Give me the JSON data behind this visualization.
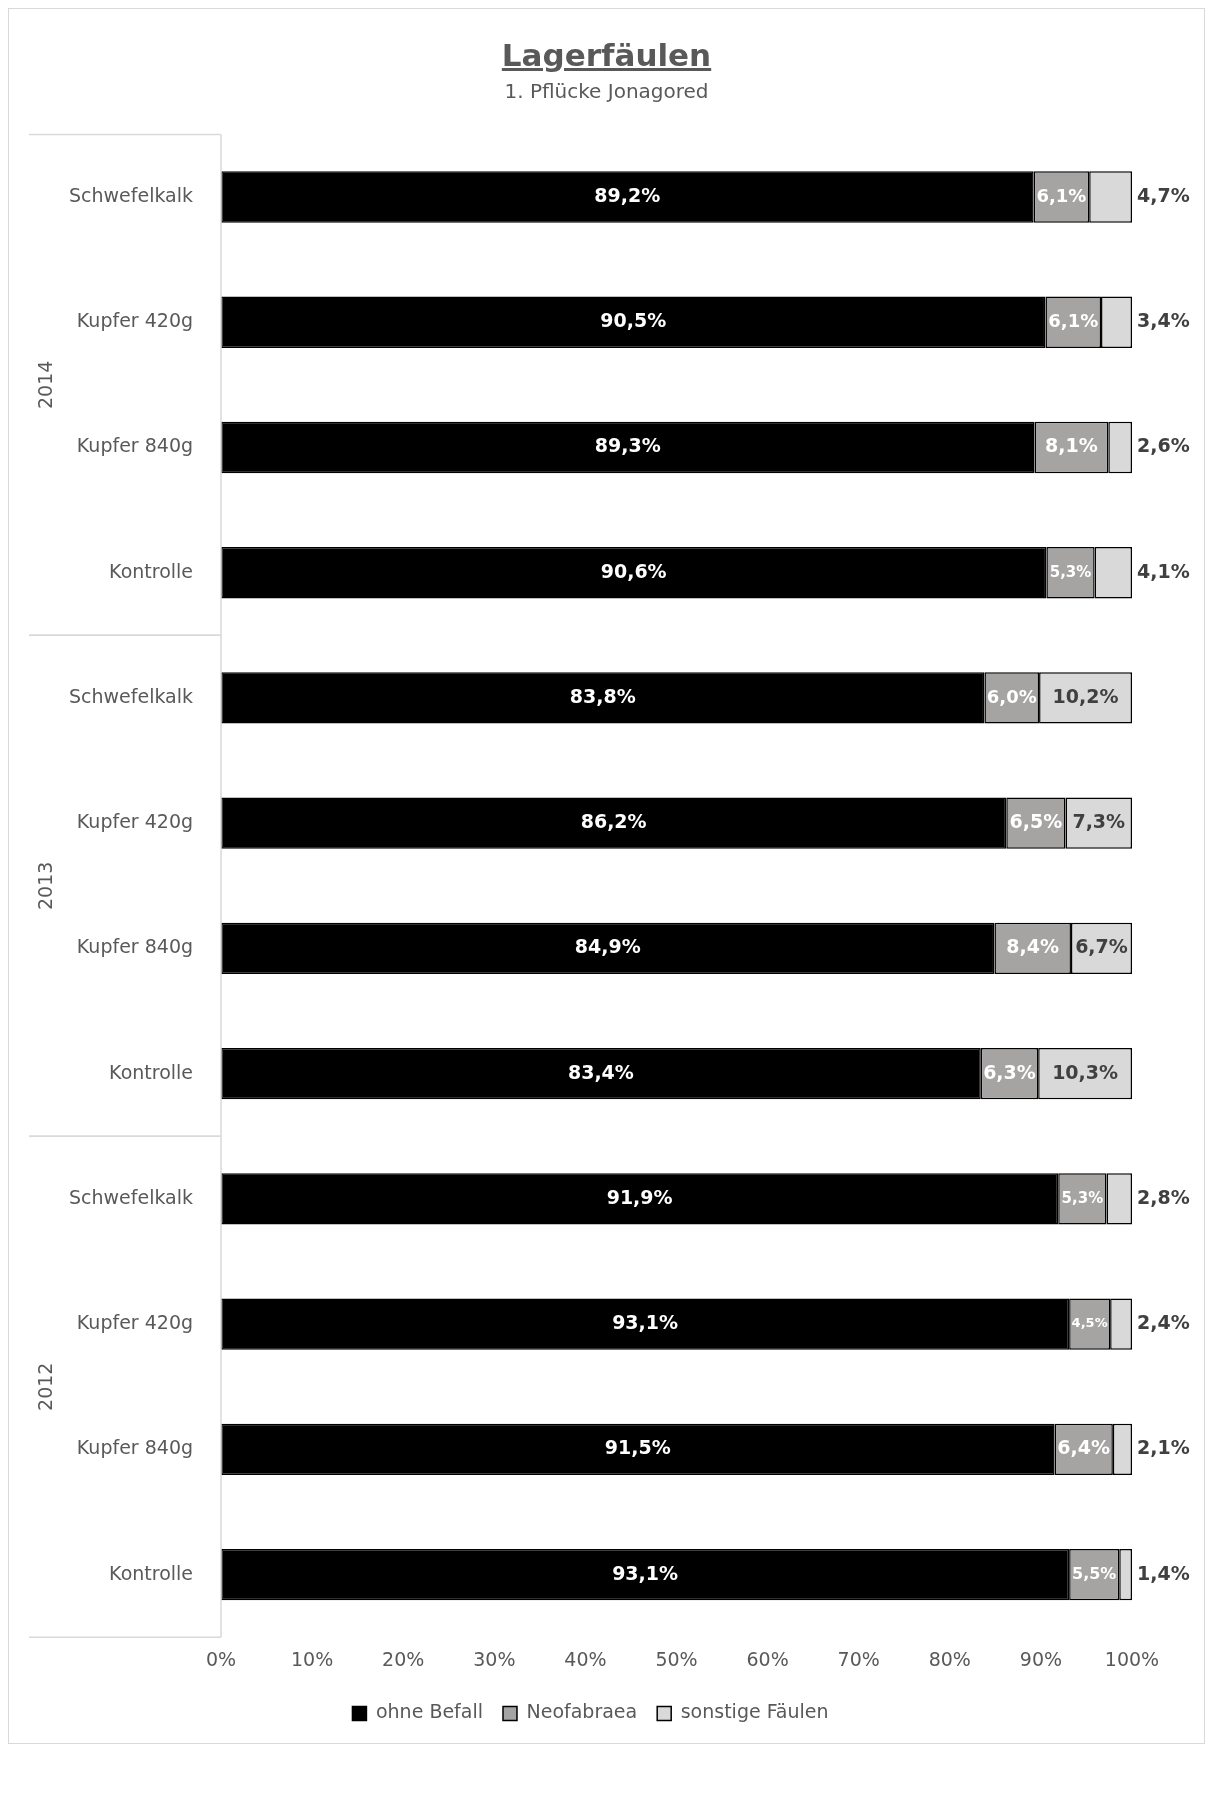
{
  "chart_data": {
    "type": "bar",
    "title": "Lagerfäulen",
    "subtitle": "1. Pflücke Jonagored",
    "orientation": "horizontal",
    "stacked": true,
    "categories": [
      "Schwefelkalk",
      "Kupfer 420g",
      "Kupfer 840g",
      "Kontrolle",
      "Schwefelkalk",
      "Kupfer 420g",
      "Kupfer 840g",
      "Kontrolle",
      "Schwefelkalk",
      "Kupfer 420g",
      "Kupfer 840g",
      "Kontrolle"
    ],
    "annotations": [
      "2014",
      "2013",
      "2012"
    ],
    "series": [
      {
        "name": "ohne Befall",
        "color": "#000000",
        "values": [
          89.2,
          90.5,
          89.3,
          90.6,
          83.8,
          86.2,
          84.9,
          83.4,
          91.9,
          93.1,
          91.5,
          93.1
        ],
        "value_labels": [
          "89,2%",
          "90,5%",
          "89,3%",
          "90,6%",
          "83,8%",
          "86,2%",
          "84,9%",
          "83,4%",
          "91,9%",
          "93,1%",
          "91,5%",
          "93,1%"
        ]
      },
      {
        "name": "Neofabraea",
        "color": "#a6a3a3",
        "values": [
          6.1,
          6.1,
          8.1,
          5.3,
          6.0,
          6.5,
          8.4,
          6.3,
          5.3,
          4.5,
          6.4,
          5.5
        ],
        "value_labels": [
          "6,1%",
          "6,1%",
          "8,1%",
          "5,3%",
          "6,0%",
          "6,5%",
          "8,4%",
          "6,3%",
          "5,3%",
          "4,5%",
          "6,4%",
          "5,5%"
        ]
      },
      {
        "name": "sonstige Fäulen",
        "color": "#d9d9d9",
        "values": [
          4.7,
          3.4,
          2.6,
          4.1,
          10.2,
          7.3,
          6.7,
          10.3,
          2.8,
          2.4,
          2.1,
          1.4
        ],
        "value_labels": [
          "4,7%",
          "3,4%",
          "2,6%",
          "4,1%",
          "10,2%",
          "7,3%",
          "6,7%",
          "10,3%",
          "2,8%",
          "2,4%",
          "2,1%",
          "1,4%"
        ]
      }
    ],
    "xlim": [
      0,
      100
    ],
    "xticks": [
      {
        "value": 0,
        "label": "0%"
      },
      {
        "value": 10,
        "label": "10%"
      },
      {
        "value": 20,
        "label": "20%"
      },
      {
        "value": 30,
        "label": "30%"
      },
      {
        "value": 40,
        "label": "40%"
      },
      {
        "value": 50,
        "label": "50%"
      },
      {
        "value": 60,
        "label": "60%"
      },
      {
        "value": 70,
        "label": "70%"
      },
      {
        "value": 80,
        "label": "80%"
      },
      {
        "value": 90,
        "label": "90%"
      },
      {
        "value": 100,
        "label": "100%"
      }
    ],
    "grid": false,
    "legend": "bottom"
  }
}
